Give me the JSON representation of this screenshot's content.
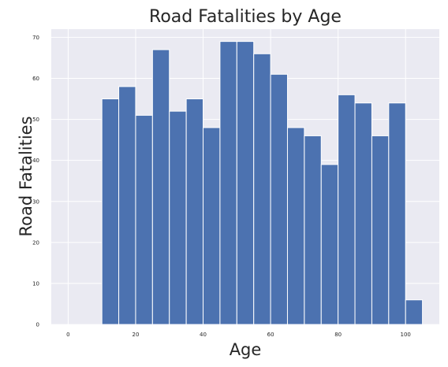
{
  "chart_data": {
    "type": "bar",
    "title": "Road Fatalities by Age",
    "xlabel": "Age",
    "ylabel": "Road Fatalities",
    "bins": [
      {
        "start": 10,
        "end": 15,
        "value": 55
      },
      {
        "start": 15,
        "end": 20,
        "value": 58
      },
      {
        "start": 20,
        "end": 25,
        "value": 51
      },
      {
        "start": 25,
        "end": 30,
        "value": 67
      },
      {
        "start": 30,
        "end": 35,
        "value": 52
      },
      {
        "start": 35,
        "end": 40,
        "value": 55
      },
      {
        "start": 40,
        "end": 45,
        "value": 48
      },
      {
        "start": 45,
        "end": 50,
        "value": 69
      },
      {
        "start": 50,
        "end": 55,
        "value": 69
      },
      {
        "start": 55,
        "end": 60,
        "value": 66
      },
      {
        "start": 60,
        "end": 65,
        "value": 61
      },
      {
        "start": 65,
        "end": 70,
        "value": 48
      },
      {
        "start": 70,
        "end": 75,
        "value": 46
      },
      {
        "start": 75,
        "end": 80,
        "value": 39
      },
      {
        "start": 80,
        "end": 85,
        "value": 56
      },
      {
        "start": 85,
        "end": 90,
        "value": 54
      },
      {
        "start": 90,
        "end": 95,
        "value": 46
      },
      {
        "start": 95,
        "end": 100,
        "value": 54
      },
      {
        "start": 100,
        "end": 105,
        "value": 6
      }
    ],
    "xlim": [
      -5,
      110
    ],
    "ylim": [
      0,
      72
    ],
    "xticks": [
      "0",
      "20",
      "40",
      "60",
      "80",
      "100"
    ],
    "yticks": [
      "0",
      "10",
      "20",
      "30",
      "40",
      "50",
      "60",
      "70"
    ],
    "grid": true,
    "bar_color": "#4c72b0",
    "background_color": "#eaeaf2",
    "grid_color": "#ffffff"
  }
}
